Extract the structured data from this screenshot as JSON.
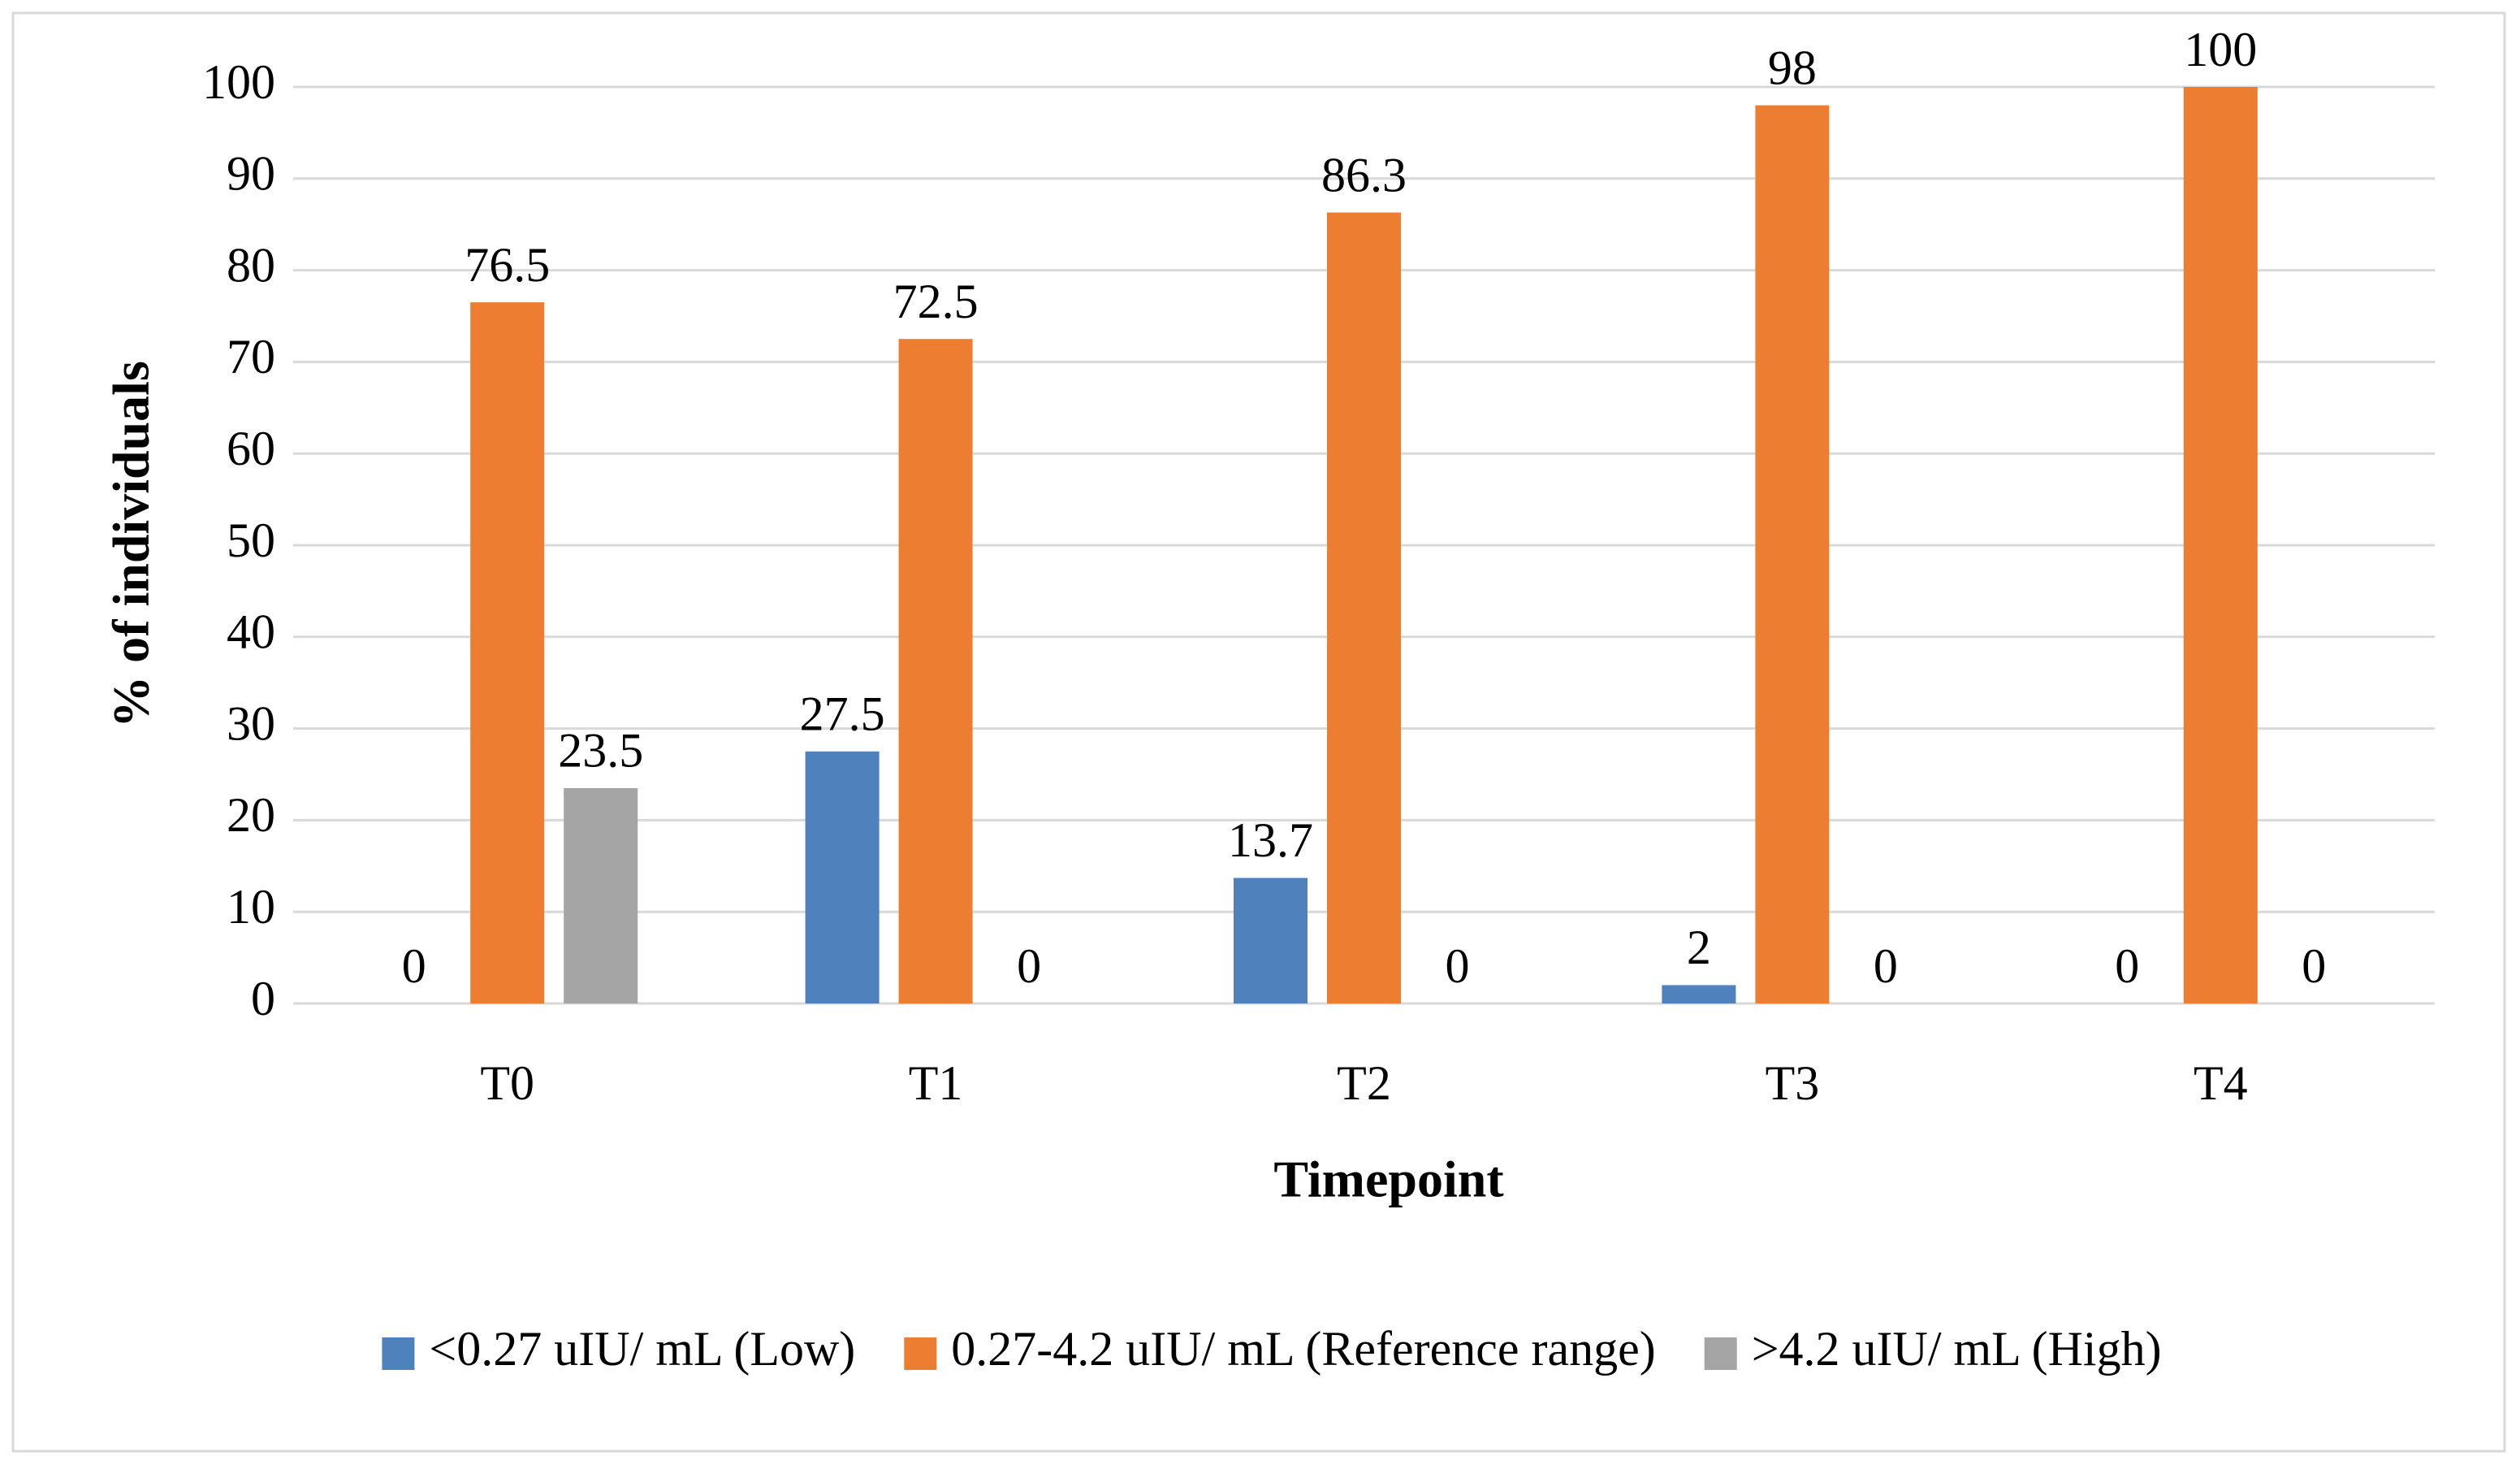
{
  "chart_data": {
    "type": "bar",
    "x_label": "Timepoint",
    "y_label": "% of individuals",
    "categories": [
      "T0",
      "T1",
      "T2",
      "T3",
      "T4"
    ],
    "series": [
      {
        "name": "<0.27 uIU/ mL (Low)",
        "color": "#4f81bd",
        "values": [
          0,
          27.5,
          13.7,
          2,
          0
        ]
      },
      {
        "name": "0.27-4.2 uIU/ mL (Reference range)",
        "color": "#ed7d31",
        "values": [
          76.5,
          72.5,
          86.3,
          98,
          100
        ]
      },
      {
        "name": ">4.2 uIU/ mL (High)",
        "color": "#a5a5a5",
        "values": [
          23.5,
          0,
          0,
          0,
          0
        ]
      }
    ],
    "ylim": [
      0,
      100
    ],
    "yticks": [
      0,
      10,
      20,
      30,
      40,
      50,
      60,
      70,
      80,
      90,
      100
    ],
    "grid": true,
    "legend": "bottom"
  }
}
